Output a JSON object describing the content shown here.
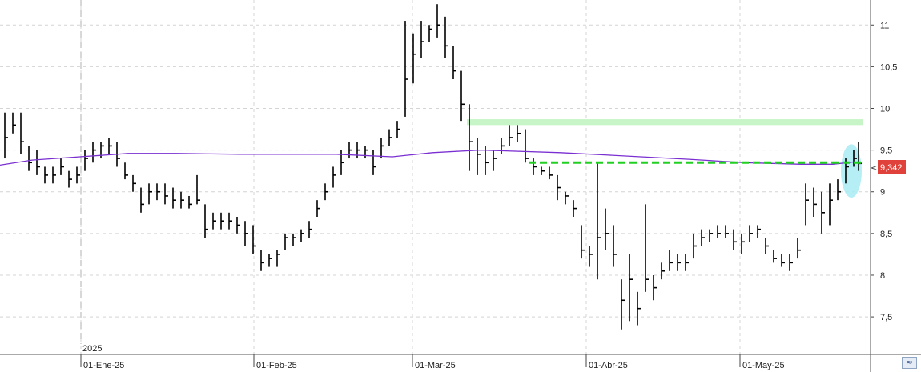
{
  "chart_data": {
    "type": "ohlc",
    "x_labels": [
      "01-Ene-25",
      "01-Feb-25",
      "01-Mar-25",
      "01-Abr-25",
      "01-May-25"
    ],
    "year_label": "2025",
    "y_ticks": [
      "11",
      "10,5",
      "10",
      "9,5",
      "9",
      "8,5",
      "8",
      "7,5"
    ],
    "y_tick_values": [
      11,
      10.5,
      10,
      9.5,
      9,
      8.5,
      8,
      7.5
    ],
    "ylim": [
      7.05,
      11.3
    ],
    "grid": true,
    "last_price": "9,342",
    "last_price_value": 9.342,
    "colors": {
      "bars": "#000000",
      "moving_average": "#7a2fd1",
      "resistance_band": "#c8f5c8",
      "support_line": "#22d022",
      "highlight": "#a8ecf3",
      "price_tag": "#e0413a",
      "grid": "#d4d4d4"
    },
    "moving_average": [
      [
        0,
        9.32
      ],
      [
        40,
        9.38
      ],
      [
        100,
        9.42
      ],
      [
        160,
        9.46
      ],
      [
        220,
        9.46
      ],
      [
        300,
        9.45
      ],
      [
        420,
        9.45
      ],
      [
        490,
        9.42
      ],
      [
        540,
        9.47
      ],
      [
        600,
        9.5
      ],
      [
        700,
        9.47
      ],
      [
        760,
        9.44
      ],
      [
        860,
        9.39
      ],
      [
        930,
        9.35
      ],
      [
        1000,
        9.33
      ],
      [
        1040,
        9.33
      ],
      [
        1068,
        9.36
      ]
    ],
    "resistance_band": {
      "from_x": 583,
      "to_x": 1078,
      "y_low": 9.8,
      "y_high": 9.87
    },
    "support_line": {
      "from_x": 660,
      "to_x": 1078,
      "y": 9.35
    },
    "series": [
      {
        "name": "",
        "points": [
          [
            6,
            9.4,
            9.95,
            9.65
          ],
          [
            16,
            9.7,
            9.95,
            9.8
          ],
          [
            26,
            9.45,
            9.95,
            9.6
          ],
          [
            36,
            9.25,
            9.55,
            9.35
          ],
          [
            46,
            9.2,
            9.5,
            9.3
          ],
          [
            56,
            9.1,
            9.3,
            9.2
          ],
          [
            66,
            9.1,
            9.3,
            9.2
          ],
          [
            76,
            9.2,
            9.4,
            9.3
          ],
          [
            86,
            9.05,
            9.25,
            9.15
          ],
          [
            96,
            9.1,
            9.3,
            9.2
          ],
          [
            106,
            9.25,
            9.5,
            9.4
          ],
          [
            116,
            9.35,
            9.6,
            9.5
          ],
          [
            126,
            9.4,
            9.6,
            9.55
          ],
          [
            136,
            9.45,
            9.65,
            9.55
          ],
          [
            146,
            9.3,
            9.6,
            9.4
          ],
          [
            156,
            9.15,
            9.35,
            9.2
          ],
          [
            166,
            9.0,
            9.2,
            9.1
          ],
          [
            176,
            8.75,
            9.05,
            8.85
          ],
          [
            186,
            8.85,
            9.1,
            9.0
          ],
          [
            196,
            8.9,
            9.1,
            9.0
          ],
          [
            206,
            8.85,
            9.1,
            8.95
          ],
          [
            216,
            8.8,
            9.05,
            8.9
          ],
          [
            226,
            8.8,
            9.0,
            8.9
          ],
          [
            236,
            8.8,
            8.95,
            8.85
          ],
          [
            246,
            8.85,
            9.2,
            8.9
          ],
          [
            256,
            8.45,
            8.85,
            8.55
          ],
          [
            266,
            8.55,
            8.75,
            8.65
          ],
          [
            276,
            8.55,
            8.75,
            8.65
          ],
          [
            286,
            8.55,
            8.75,
            8.65
          ],
          [
            296,
            8.5,
            8.7,
            8.6
          ],
          [
            306,
            8.35,
            8.65,
            8.5
          ],
          [
            316,
            8.25,
            8.6,
            8.35
          ],
          [
            326,
            8.05,
            8.3,
            8.15
          ],
          [
            336,
            8.1,
            8.25,
            8.2
          ],
          [
            346,
            8.1,
            8.3,
            8.25
          ],
          [
            356,
            8.3,
            8.5,
            8.45
          ],
          [
            366,
            8.35,
            8.5,
            8.45
          ],
          [
            376,
            8.4,
            8.55,
            8.5
          ],
          [
            386,
            8.45,
            8.65,
            8.55
          ],
          [
            396,
            8.7,
            8.9,
            8.8
          ],
          [
            406,
            8.9,
            9.1,
            9.0
          ],
          [
            416,
            9.05,
            9.3,
            9.2
          ],
          [
            426,
            9.2,
            9.5,
            9.35
          ],
          [
            436,
            9.4,
            9.6,
            9.5
          ],
          [
            446,
            9.4,
            9.6,
            9.5
          ],
          [
            456,
            9.4,
            9.55,
            9.5
          ],
          [
            466,
            9.2,
            9.5,
            9.3
          ],
          [
            476,
            9.4,
            9.65,
            9.55
          ],
          [
            486,
            9.55,
            9.75,
            9.65
          ],
          [
            496,
            9.65,
            9.85,
            9.75
          ],
          [
            506,
            9.9,
            11.05,
            10.35
          ],
          [
            516,
            10.3,
            10.9,
            10.65
          ],
          [
            526,
            10.6,
            11.05,
            10.8
          ],
          [
            536,
            10.8,
            11.0,
            10.95
          ],
          [
            546,
            10.85,
            11.25,
            11.0
          ],
          [
            556,
            10.6,
            11.1,
            10.75
          ],
          [
            566,
            10.35,
            10.75,
            10.45
          ],
          [
            576,
            9.85,
            10.45,
            10.05
          ],
          [
            586,
            9.25,
            10.05,
            9.6
          ],
          [
            596,
            9.2,
            9.65,
            9.45
          ],
          [
            606,
            9.2,
            9.55,
            9.35
          ],
          [
            616,
            9.25,
            9.5,
            9.4
          ],
          [
            626,
            9.45,
            9.65,
            9.55
          ],
          [
            636,
            9.55,
            9.8,
            9.65
          ],
          [
            646,
            9.6,
            9.8,
            9.7
          ],
          [
            656,
            9.35,
            9.75,
            9.4
          ],
          [
            666,
            9.2,
            9.4,
            9.3
          ],
          [
            676,
            9.2,
            9.3,
            9.25
          ],
          [
            686,
            9.15,
            9.3,
            9.2
          ],
          [
            696,
            8.9,
            9.2,
            9.05
          ],
          [
            706,
            8.85,
            9.0,
            8.95
          ],
          [
            716,
            8.7,
            8.9,
            8.8
          ],
          [
            726,
            8.2,
            8.6,
            8.3
          ],
          [
            736,
            8.1,
            8.35,
            8.25
          ],
          [
            746,
            7.95,
            9.35,
            8.45
          ],
          [
            756,
            8.3,
            8.8,
            8.5
          ],
          [
            766,
            8.1,
            8.6,
            8.25
          ],
          [
            776,
            7.35,
            7.95,
            7.7
          ],
          [
            786,
            7.45,
            8.25,
            7.95
          ],
          [
            796,
            7.4,
            7.8,
            7.6
          ],
          [
            806,
            7.8,
            8.85,
            7.95
          ],
          [
            816,
            7.7,
            8.0,
            7.85
          ],
          [
            826,
            7.95,
            8.15,
            8.05
          ],
          [
            836,
            8.05,
            8.3,
            8.15
          ],
          [
            846,
            8.05,
            8.25,
            8.15
          ],
          [
            856,
            8.05,
            8.25,
            8.15
          ],
          [
            866,
            8.2,
            8.5,
            8.35
          ],
          [
            876,
            8.35,
            8.55,
            8.45
          ],
          [
            886,
            8.4,
            8.55,
            8.5
          ],
          [
            896,
            8.45,
            8.6,
            8.5
          ],
          [
            906,
            8.45,
            8.6,
            8.5
          ],
          [
            916,
            8.3,
            8.55,
            8.4
          ],
          [
            926,
            8.25,
            8.5,
            8.4
          ],
          [
            936,
            8.4,
            8.6,
            8.5
          ],
          [
            946,
            8.45,
            8.6,
            8.55
          ],
          [
            956,
            8.25,
            8.45,
            8.35
          ],
          [
            966,
            8.15,
            8.3,
            8.2
          ],
          [
            976,
            8.1,
            8.25,
            8.15
          ],
          [
            986,
            8.05,
            8.25,
            8.15
          ],
          [
            996,
            8.2,
            8.45,
            8.3
          ],
          [
            1006,
            8.6,
            9.1,
            8.9
          ],
          [
            1016,
            8.7,
            9.05,
            8.85
          ],
          [
            1026,
            8.5,
            9.0,
            8.75
          ],
          [
            1036,
            8.6,
            9.1,
            8.9
          ],
          [
            1046,
            8.9,
            9.15,
            9.0
          ],
          [
            1056,
            9.1,
            9.4,
            9.3
          ],
          [
            1066,
            9.3,
            9.5,
            9.4
          ],
          [
            1072,
            9.25,
            9.6,
            9.34
          ]
        ]
      }
    ],
    "highlight": {
      "x": 1063,
      "y": 9.25,
      "ry_value": 0.32
    }
  }
}
